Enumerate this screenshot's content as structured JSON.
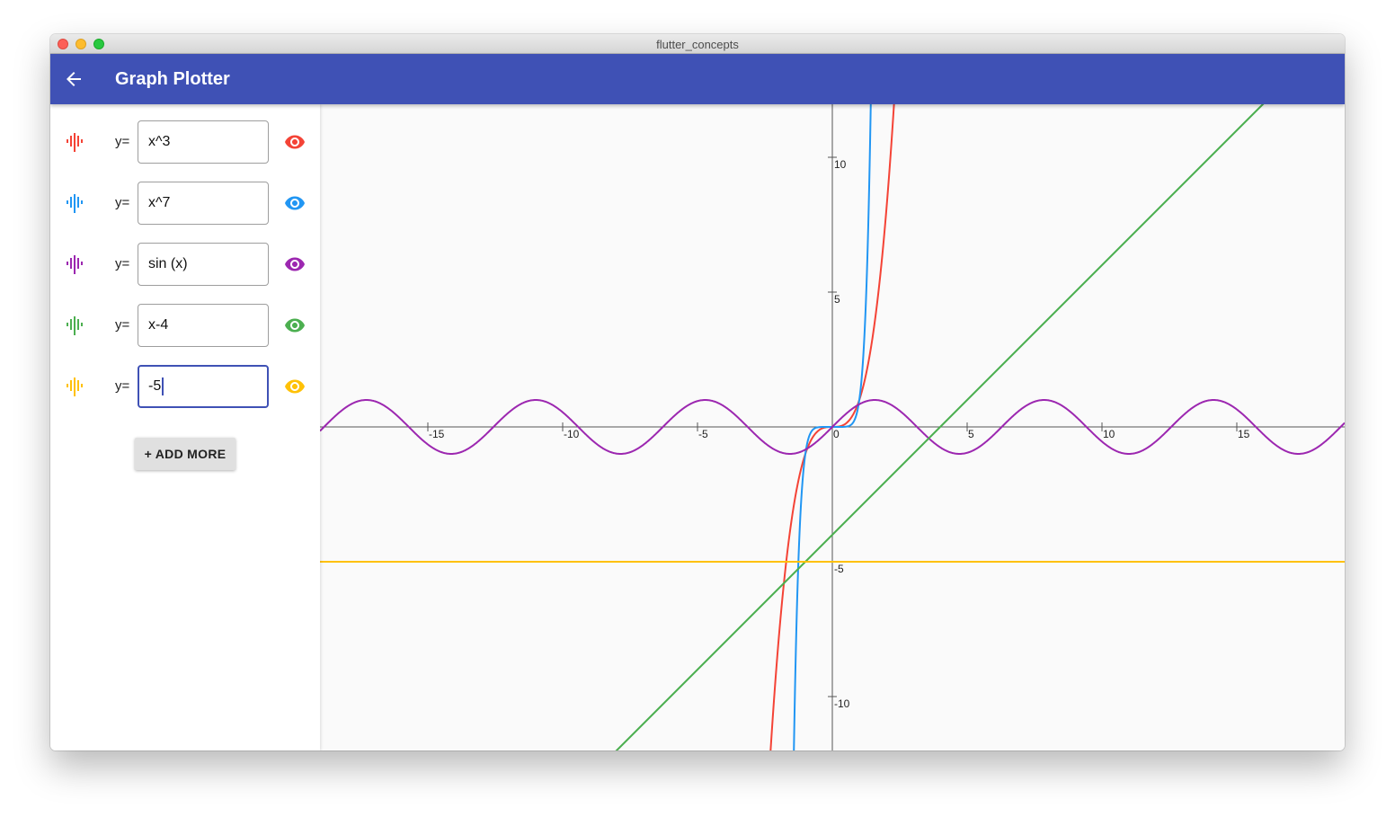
{
  "window": {
    "title": "flutter_concepts"
  },
  "appbar": {
    "title": "Graph Plotter"
  },
  "functions": [
    {
      "prefix": "y=",
      "expression": "x^3",
      "color": "#f44336",
      "icon": "graphic-eq-icon",
      "visibility_icon": "eye-icon",
      "visible": true
    },
    {
      "prefix": "y=",
      "expression": "x^7",
      "color": "#2196f3",
      "icon": "graphic-eq-icon",
      "visibility_icon": "eye-icon",
      "visible": true
    },
    {
      "prefix": "y=",
      "expression": "sin (x)",
      "color": "#9c27b0",
      "icon": "graphic-eq-icon",
      "visibility_icon": "eye-icon",
      "visible": true
    },
    {
      "prefix": "y=",
      "expression": "x-4",
      "color": "#4caf50",
      "icon": "graphic-eq-icon",
      "visibility_icon": "eye-icon",
      "visible": true
    },
    {
      "prefix": "y=",
      "expression": "-5",
      "color": "#ffc107",
      "icon": "graphic-eq-icon",
      "visibility_icon": "eye-icon",
      "visible": true,
      "focused": true
    }
  ],
  "add_button": {
    "label": "+ ADD MORE"
  },
  "plot": {
    "x_range": [
      -19,
      19
    ],
    "y_range": [
      -12,
      12
    ],
    "x_ticks": [
      -15,
      -10,
      -5,
      0,
      5,
      10,
      15
    ],
    "y_ticks": [
      10,
      5,
      -5,
      -10
    ],
    "axis_color": "#555555",
    "background": "#fafafa"
  },
  "colors": {
    "primary": "#3f51b5",
    "red": "#f44336",
    "blue": "#2196f3",
    "purple": "#9c27b0",
    "green": "#4caf50",
    "amber": "#ffc107"
  }
}
